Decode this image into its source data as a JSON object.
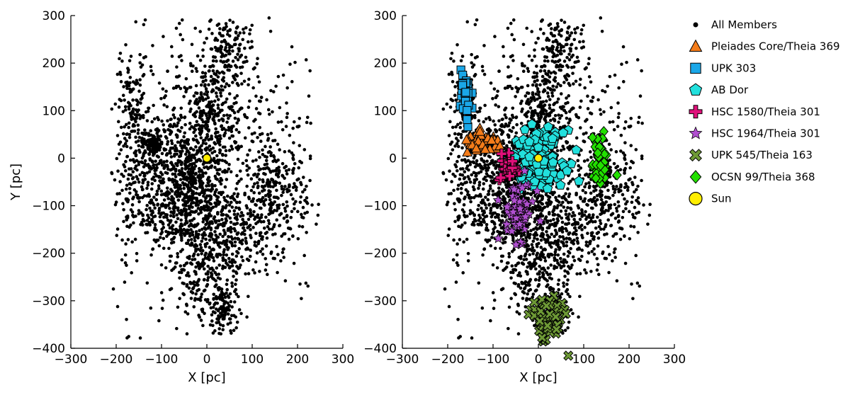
{
  "chart_data": [
    {
      "type": "scatter",
      "panel": "left",
      "xlabel": "X [pc]",
      "ylabel": "Y [pc]",
      "xlim": [
        -300,
        300
      ],
      "ylim": [
        -400,
        300
      ],
      "xticks": [
        "−300",
        "−200",
        "−100",
        "0",
        "100",
        "200",
        "300"
      ],
      "yticks": [
        "−400",
        "−300",
        "−200",
        "−100",
        "0",
        "100",
        "200",
        "300"
      ],
      "grid": false,
      "series": [
        {
          "name": "All Members",
          "marker": "dot",
          "color": "#000000",
          "approx_count": 2800,
          "clumps": [
            {
              "cx": -40,
              "cy": -90,
              "sx": 40,
              "sy": 55,
              "n": 420
            },
            {
              "cx": 10,
              "cy": 80,
              "sx": 35,
              "sy": 60,
              "n": 260
            },
            {
              "cx": 40,
              "cy": 230,
              "sx": 25,
              "sy": 40,
              "n": 140
            },
            {
              "cx": -160,
              "cy": 100,
              "sx": 15,
              "sy": 55,
              "n": 110
            },
            {
              "cx": -120,
              "cy": 30,
              "sx": 12,
              "sy": 10,
              "n": 90
            },
            {
              "cx": 150,
              "cy": -80,
              "sx": 35,
              "sy": 55,
              "n": 230
            },
            {
              "cx": 35,
              "cy": -320,
              "sx": 18,
              "sy": 35,
              "n": 130
            },
            {
              "cx": -20,
              "cy": -230,
              "sx": 30,
              "sy": 45,
              "n": 170
            },
            {
              "cx": -80,
              "cy": 10,
              "sx": 55,
              "sy": 45,
              "n": 220
            },
            {
              "cx": 60,
              "cy": -150,
              "sx": 40,
              "sy": 50,
              "n": 180
            },
            {
              "cx": -130,
              "cy": -90,
              "sx": 45,
              "sy": 45,
              "n": 180
            },
            {
              "cx": 0,
              "cy": 0,
              "sx": 130,
              "sy": 160,
              "n": 700
            }
          ]
        },
        {
          "name": "Sun",
          "marker": "circle",
          "color": "#ffee00",
          "points": [
            [
              0,
              0
            ]
          ]
        }
      ]
    },
    {
      "type": "scatter",
      "panel": "right",
      "xlabel": "X [pc]",
      "ylabel": "",
      "xlim": [
        -300,
        300
      ],
      "ylim": [
        -400,
        300
      ],
      "xticks": [
        "−300",
        "−200",
        "−100",
        "0",
        "100",
        "200",
        "300"
      ],
      "yticks": [
        "−400",
        "−300",
        "−200",
        "−100",
        "0",
        "100",
        "200",
        "300"
      ],
      "grid": false,
      "legend_position": "outside-right",
      "series": [
        {
          "name": "All Members",
          "marker": "dot",
          "color": "#000000",
          "approx_count": 2800
        },
        {
          "name": "Pleiades Core/Theia 369",
          "marker": "triangle",
          "color": "#f47c1a",
          "region": {
            "cx": -120,
            "cy": 30,
            "sx": 22,
            "sy": 10,
            "n": 55
          }
        },
        {
          "name": "UPK 303",
          "marker": "square",
          "color": "#1aa7e8",
          "region": {
            "cx": -162,
            "cy": 125,
            "sx": 7,
            "sy": 30,
            "n": 45
          }
        },
        {
          "name": "AB Dor",
          "marker": "pentagon",
          "color": "#22e0dd",
          "region": {
            "cx": 0,
            "cy": 0,
            "sx": 28,
            "sy": 28,
            "n": 150
          }
        },
        {
          "name": "HSC 1580/Theia 301",
          "marker": "plus",
          "color": "#e0107a",
          "region": {
            "cx": -65,
            "cy": -20,
            "sx": 10,
            "sy": 15,
            "n": 30
          }
        },
        {
          "name": "HSC 1964/Theia 301",
          "marker": "star",
          "color": "#b04fd0",
          "region": {
            "cx": -45,
            "cy": -110,
            "sx": 18,
            "sy": 30,
            "n": 70
          }
        },
        {
          "name": "UPK 545/Theia 163",
          "marker": "x",
          "color": "#6e9a36",
          "region": {
            "cx": 20,
            "cy": -340,
            "sx": 18,
            "sy": 25,
            "n": 80
          }
        },
        {
          "name": "OCSN 99/Theia 368",
          "marker": "diamond",
          "color": "#22e000",
          "region": {
            "cx": 135,
            "cy": -10,
            "sx": 9,
            "sy": 28,
            "n": 45
          }
        },
        {
          "name": "Sun",
          "marker": "circle",
          "color": "#ffee00",
          "points": [
            [
              0,
              0
            ]
          ]
        }
      ]
    }
  ]
}
